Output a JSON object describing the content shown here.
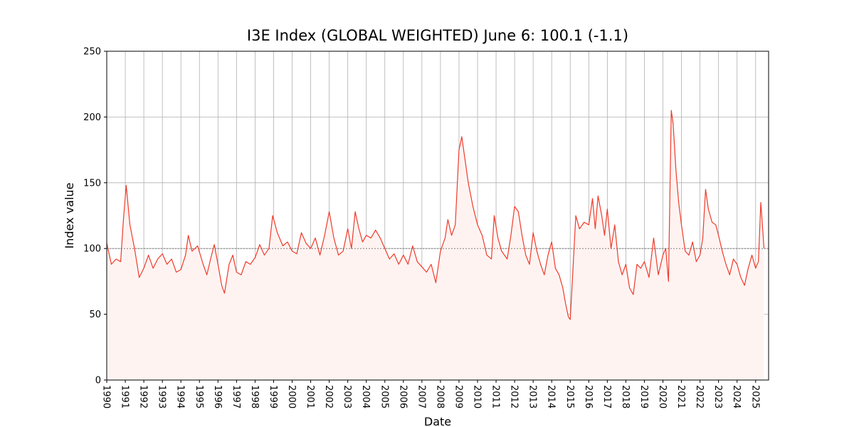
{
  "chart_data": {
    "type": "line",
    "title": "I3E Index (GLOBAL WEIGHTED) June 6: 100.1 (-1.1)",
    "x_label": "Date",
    "y_label": "Index value",
    "xlim": [
      1990,
      2025.7
    ],
    "ylim": [
      0,
      250
    ],
    "xticks": [
      1990,
      1991,
      1992,
      1993,
      1994,
      1995,
      1996,
      1997,
      1998,
      1999,
      2000,
      2001,
      2002,
      2003,
      2004,
      2005,
      2006,
      2007,
      2008,
      2009,
      2010,
      2011,
      2012,
      2013,
      2014,
      2015,
      2016,
      2017,
      2018,
      2019,
      2020,
      2021,
      2022,
      2023,
      2024,
      2025
    ],
    "yticks": [
      0,
      50,
      100,
      150,
      200,
      250
    ],
    "grid": true,
    "reference_line": 100,
    "fill_color": "#fff3f1",
    "series": [
      {
        "color": "#ee3b2b",
        "x": [
          1990.0,
          1990.25,
          1990.5,
          1990.75,
          1990.9,
          1991.05,
          1991.25,
          1991.5,
          1991.75,
          1992.0,
          1992.25,
          1992.5,
          1992.75,
          1993.0,
          1993.25,
          1993.5,
          1993.75,
          1994.0,
          1994.25,
          1994.4,
          1994.6,
          1994.9,
          1995.2,
          1995.4,
          1995.6,
          1995.8,
          1996.0,
          1996.2,
          1996.35,
          1996.6,
          1996.8,
          1997.0,
          1997.25,
          1997.5,
          1997.75,
          1998.0,
          1998.25,
          1998.5,
          1998.75,
          1998.95,
          1999.2,
          1999.5,
          1999.75,
          2000.0,
          2000.25,
          2000.5,
          2000.75,
          2001.0,
          2001.25,
          2001.5,
          2001.75,
          2002.0,
          2002.25,
          2002.5,
          2002.75,
          2003.0,
          2003.2,
          2003.4,
          2003.6,
          2003.8,
          2004.0,
          2004.25,
          2004.5,
          2004.75,
          2005.0,
          2005.25,
          2005.5,
          2005.75,
          2006.0,
          2006.25,
          2006.5,
          2006.75,
          2007.0,
          2007.25,
          2007.5,
          2007.75,
          2008.0,
          2008.25,
          2008.4,
          2008.6,
          2008.8,
          2009.0,
          2009.15,
          2009.3,
          2009.5,
          2009.75,
          2010.0,
          2010.25,
          2010.5,
          2010.75,
          2010.9,
          2011.1,
          2011.3,
          2011.6,
          2011.8,
          2012.0,
          2012.2,
          2012.4,
          2012.6,
          2012.8,
          2013.0,
          2013.2,
          2013.4,
          2013.6,
          2013.8,
          2014.0,
          2014.2,
          2014.4,
          2014.6,
          2014.75,
          2014.9,
          2015.0,
          2015.15,
          2015.3,
          2015.5,
          2015.75,
          2016.0,
          2016.2,
          2016.35,
          2016.5,
          2016.7,
          2016.85,
          2017.0,
          2017.2,
          2017.4,
          2017.6,
          2017.8,
          2018.0,
          2018.2,
          2018.4,
          2018.6,
          2018.8,
          2019.0,
          2019.25,
          2019.5,
          2019.75,
          2020.0,
          2020.15,
          2020.3,
          2020.45,
          2020.55,
          2020.7,
          2020.85,
          2021.0,
          2021.2,
          2021.4,
          2021.6,
          2021.8,
          2022.0,
          2022.15,
          2022.3,
          2022.45,
          2022.65,
          2022.85,
          2023.0,
          2023.2,
          2023.4,
          2023.6,
          2023.8,
          2024.0,
          2024.2,
          2024.4,
          2024.6,
          2024.8,
          2025.0,
          2025.15,
          2025.28,
          2025.38,
          2025.45
        ],
        "values": [
          104,
          88,
          92,
          90,
          122,
          148,
          118,
          100,
          78,
          85,
          95,
          85,
          92,
          96,
          88,
          92,
          82,
          84,
          95,
          110,
          98,
          102,
          88,
          80,
          92,
          103,
          88,
          72,
          66,
          88,
          95,
          82,
          80,
          90,
          88,
          93,
          103,
          95,
          100,
          125,
          112,
          102,
          105,
          98,
          96,
          112,
          104,
          100,
          108,
          95,
          110,
          128,
          108,
          95,
          98,
          115,
          100,
          128,
          115,
          105,
          110,
          108,
          114,
          108,
          100,
          92,
          96,
          88,
          95,
          88,
          102,
          90,
          86,
          82,
          88,
          74,
          98,
          108,
          122,
          110,
          118,
          175,
          185,
          170,
          150,
          132,
          118,
          110,
          95,
          92,
          125,
          108,
          98,
          92,
          110,
          132,
          128,
          110,
          95,
          88,
          112,
          98,
          88,
          80,
          95,
          105,
          85,
          80,
          70,
          58,
          48,
          46,
          85,
          125,
          115,
          120,
          118,
          138,
          115,
          140,
          125,
          110,
          130,
          100,
          118,
          90,
          80,
          88,
          70,
          65,
          88,
          85,
          90,
          78,
          108,
          80,
          95,
          100,
          75,
          205,
          195,
          160,
          135,
          118,
          98,
          95,
          105,
          90,
          95,
          108,
          145,
          130,
          120,
          118,
          110,
          98,
          88,
          80,
          92,
          88,
          78,
          72,
          85,
          95,
          85,
          90,
          135,
          115,
          100.1
        ]
      }
    ]
  }
}
